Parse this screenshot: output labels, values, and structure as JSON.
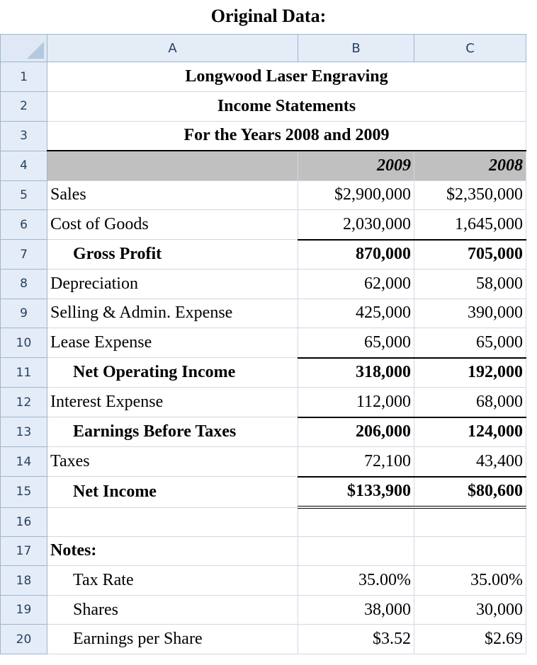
{
  "caption": "Original Data:",
  "columns": [
    "A",
    "B",
    "C"
  ],
  "rows": [
    {
      "n": "1",
      "a": "Longwood Laser Engraving",
      "b": "",
      "c": ""
    },
    {
      "n": "2",
      "a": "Income Statements",
      "b": "",
      "c": ""
    },
    {
      "n": "3",
      "a": "For the Years 2008 and 2009",
      "b": "",
      "c": ""
    },
    {
      "n": "4",
      "a": "",
      "b": "2009",
      "c": "2008"
    },
    {
      "n": "5",
      "a": "Sales",
      "b": "$2,900,000",
      "c": "$2,350,000"
    },
    {
      "n": "6",
      "a": "Cost of Goods",
      "b": "2,030,000",
      "c": "1,645,000"
    },
    {
      "n": "7",
      "a": "Gross Profit",
      "b": "870,000",
      "c": "705,000"
    },
    {
      "n": "8",
      "a": "Depreciation",
      "b": "62,000",
      "c": "58,000"
    },
    {
      "n": "9",
      "a": "Selling & Admin. Expense",
      "b": "425,000",
      "c": "390,000"
    },
    {
      "n": "10",
      "a": "Lease Expense",
      "b": "65,000",
      "c": "65,000"
    },
    {
      "n": "11",
      "a": "Net Operating Income",
      "b": "318,000",
      "c": "192,000"
    },
    {
      "n": "12",
      "a": "Interest Expense",
      "b": "112,000",
      "c": "68,000"
    },
    {
      "n": "13",
      "a": "Earnings Before Taxes",
      "b": "206,000",
      "c": "124,000"
    },
    {
      "n": "14",
      "a": "Taxes",
      "b": "72,100",
      "c": "43,400"
    },
    {
      "n": "15",
      "a": "Net Income",
      "b": "$133,900",
      "c": "$80,600"
    },
    {
      "n": "16",
      "a": "",
      "b": "",
      "c": ""
    },
    {
      "n": "17",
      "a": "Notes:",
      "b": "",
      "c": ""
    },
    {
      "n": "18",
      "a": "Tax Rate",
      "b": "35.00%",
      "c": "35.00%"
    },
    {
      "n": "19",
      "a": "Shares",
      "b": "38,000",
      "c": "30,000"
    },
    {
      "n": "20",
      "a": "Earnings per Share",
      "b": "$3.52",
      "c": "$2.69"
    }
  ],
  "colors": {
    "header_bg": "#e4ecf7",
    "year_band": "#c0c0c0",
    "grid": "#d0d7e5"
  }
}
